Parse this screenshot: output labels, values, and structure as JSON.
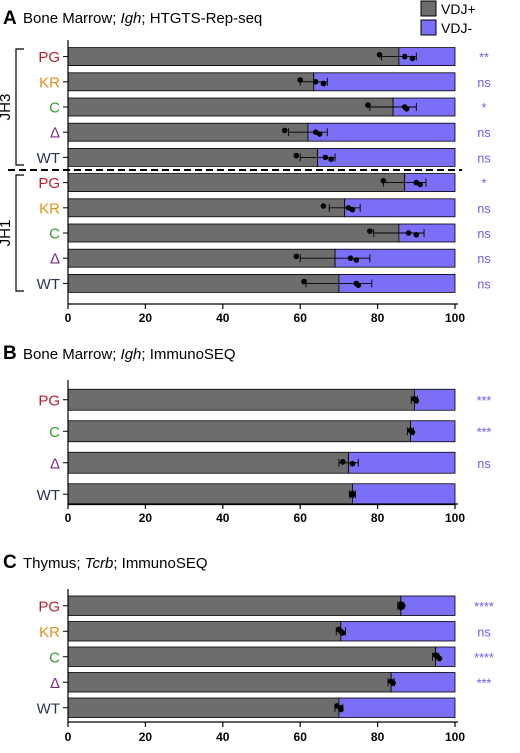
{
  "legend": [
    {
      "label": "VDJ+",
      "color": "#6d6d6d"
    },
    {
      "label": "VDJ-",
      "color": "#7b6ff7"
    }
  ],
  "colors": {
    "PG": "#b5222f",
    "KR": "#e6901c",
    "C": "#3a9a2e",
    "Δ": "#7a2c82",
    "WT": "#2a3350",
    "sig": "#6a5cf0"
  },
  "chart_data": [
    {
      "type": "bar",
      "panel": "A",
      "title_parts": [
        "Bone Marrow; ",
        "Igh",
        "; HTGTS-Rep-seq"
      ],
      "xlim": [
        0,
        100
      ],
      "xticks": [
        0,
        20,
        40,
        60,
        80,
        100
      ],
      "groups": [
        {
          "label": "JH3",
          "rows": [
            {
              "category": "PG",
              "vdj_plus": 85.5,
              "err": 4.5,
              "points": [
                80.5,
                87,
                89
              ],
              "sig": "**"
            },
            {
              "category": "KR",
              "vdj_plus": 63.5,
              "err": 3.5,
              "points": [
                60,
                64,
                66
              ],
              "sig": "ns"
            },
            {
              "category": "C",
              "vdj_plus": 84,
              "err": 6,
              "points": [
                77.5,
                87,
                87.5
              ],
              "sig": "*"
            },
            {
              "category": "Δ",
              "vdj_plus": 62,
              "err": 5,
              "points": [
                56,
                64,
                65
              ],
              "sig": "ns"
            },
            {
              "category": "WT",
              "vdj_plus": 64.5,
              "err": 4.5,
              "points": [
                59,
                66.5,
                68
              ],
              "sig": "ns"
            }
          ]
        },
        {
          "label": "JH1",
          "rows": [
            {
              "category": "PG",
              "vdj_plus": 87,
              "err": 5.5,
              "points": [
                81.5,
                90,
                91
              ],
              "sig": "*"
            },
            {
              "category": "KR",
              "vdj_plus": 71.5,
              "err": 4,
              "points": [
                66,
                72.5,
                73.5
              ],
              "sig": "ns"
            },
            {
              "category": "C",
              "vdj_plus": 85.5,
              "err": 6.5,
              "points": [
                78,
                88,
                90
              ],
              "sig": "ns"
            },
            {
              "category": "Δ",
              "vdj_plus": 69,
              "err": 9,
              "points": [
                59,
                73,
                74.5
              ],
              "sig": "ns"
            },
            {
              "category": "WT",
              "vdj_plus": 70,
              "err": 8.5,
              "points": [
                61,
                74.5,
                75
              ],
              "sig": "ns"
            }
          ]
        }
      ]
    },
    {
      "type": "bar",
      "panel": "B",
      "title_parts": [
        "Bone Marrow; ",
        "Igh",
        "; ImmunoSEQ"
      ],
      "xlim": [
        0,
        100
      ],
      "xticks": [
        0,
        20,
        40,
        60,
        80,
        100
      ],
      "groups": [
        {
          "label": "",
          "rows": [
            {
              "category": "PG",
              "vdj_plus": 89.5,
              "err": 0.8,
              "points": [
                89.5,
                90
              ],
              "sig": "***"
            },
            {
              "category": "C",
              "vdj_plus": 88.5,
              "err": 0.8,
              "points": [
                88.5,
                89
              ],
              "sig": "***"
            },
            {
              "category": "Δ",
              "vdj_plus": 72.5,
              "err": 2.5,
              "points": [
                71,
                73.5
              ],
              "sig": "ns"
            },
            {
              "category": "WT",
              "vdj_plus": 73.5,
              "err": 0.8,
              "points": [
                73.5,
                73.5
              ],
              "sig": ""
            }
          ]
        }
      ]
    },
    {
      "type": "bar",
      "panel": "C",
      "title_parts": [
        "Thymus; ",
        "Tcrb",
        "; ImmunoSEQ"
      ],
      "xlim": [
        0,
        100
      ],
      "xticks": [
        0,
        20,
        40,
        60,
        80,
        100
      ],
      "groups": [
        {
          "label": "",
          "rows": [
            {
              "category": "PG",
              "vdj_plus": 86,
              "err": 0.8,
              "points": [
                86,
                86.5,
                86
              ],
              "sig": "****"
            },
            {
              "category": "KR",
              "vdj_plus": 70.5,
              "err": 1.2,
              "points": [
                70,
                70.5,
                71
              ],
              "sig": "ns"
            },
            {
              "category": "C",
              "vdj_plus": 95,
              "err": 0.8,
              "points": [
                95,
                95.5,
                96
              ],
              "sig": "****"
            },
            {
              "category": "Δ",
              "vdj_plus": 83.5,
              "err": 0.8,
              "points": [
                83.5,
                84
              ],
              "sig": "***"
            },
            {
              "category": "WT",
              "vdj_plus": 70,
              "err": 1,
              "points": [
                69.5,
                70.5,
                70.5
              ],
              "sig": ""
            }
          ]
        }
      ]
    }
  ]
}
